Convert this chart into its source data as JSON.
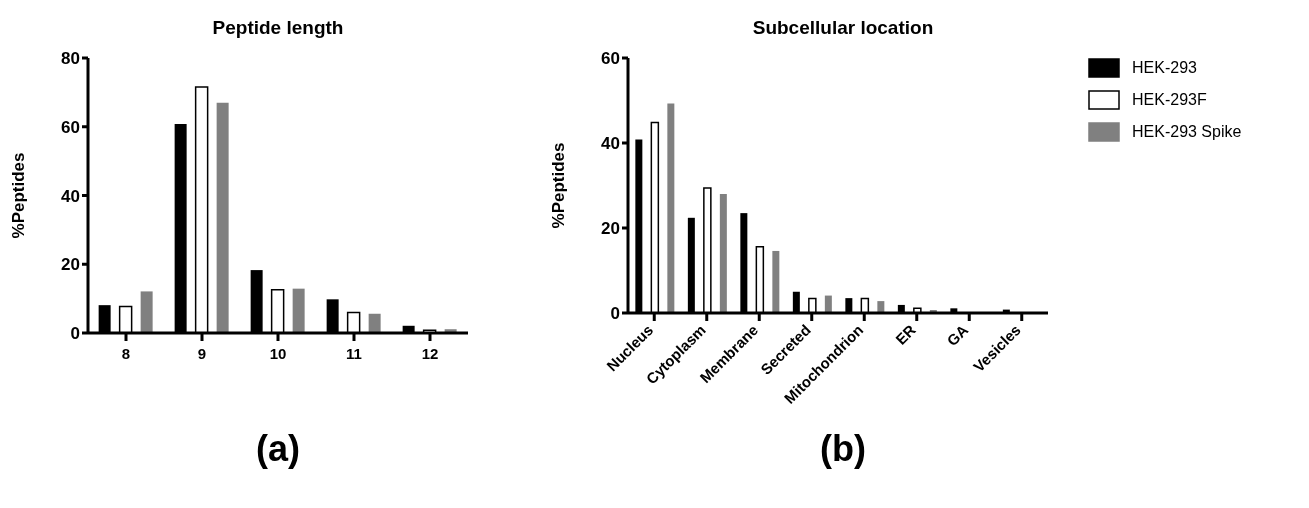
{
  "chart_data": [
    {
      "type": "bar",
      "title": "Peptide length",
      "ylabel": "%Peptides",
      "categories": [
        "8",
        "9",
        "10",
        "11",
        "12"
      ],
      "series": [
        {
          "color": "#000000",
          "values": [
            8.1,
            60.8,
            18.3,
            9.8,
            2.1
          ]
        },
        {
          "color": "#ffffff",
          "values": [
            7.7,
            71.6,
            12.6,
            6.0,
            0.8
          ]
        },
        {
          "color": "#808080",
          "values": [
            12.1,
            67.0,
            12.9,
            5.6,
            1.1
          ]
        }
      ],
      "ylim": [
        0,
        80
      ],
      "yticks": [
        0,
        20,
        40,
        60,
        80
      ],
      "grid": false,
      "legend": false,
      "annotations": [
        "(a)"
      ]
    },
    {
      "type": "bar",
      "title": "Subcellular location",
      "ylabel": "%Peptides",
      "categories": [
        "Nucleus",
        "Cytoplasm",
        "Membrane",
        "Secreted",
        "Mitochondrion",
        "ER",
        "GA",
        "Vesicles"
      ],
      "series": [
        {
          "name": "HEK-293",
          "color": "#000000",
          "values": [
            40.8,
            22.4,
            23.5,
            5.0,
            3.5,
            1.9,
            1.1,
            0.8
          ]
        },
        {
          "name": "HEK-293F",
          "color": "#ffffff",
          "values": [
            44.8,
            29.4,
            15.6,
            3.4,
            3.4,
            1.1,
            0,
            0
          ]
        },
        {
          "name": "HEK-293 Spike",
          "color": "#808080",
          "values": [
            49.3,
            28.0,
            14.6,
            4.1,
            2.8,
            0.7,
            0,
            0
          ]
        }
      ],
      "ylim": [
        0,
        60
      ],
      "yticks": [
        0,
        20,
        40,
        60
      ],
      "grid": false,
      "legend": "right",
      "annotations": [
        "(b)"
      ]
    }
  ]
}
